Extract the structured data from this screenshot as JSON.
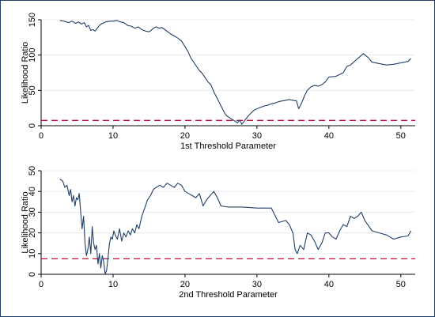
{
  "chart_data": [
    {
      "type": "line",
      "xlabel": "1st Threshold Parameter",
      "ylabel": "Likelihood Ratio",
      "xlim": [
        0,
        52
      ],
      "ylim": [
        0,
        150
      ],
      "xticks": [
        0,
        10,
        20,
        30,
        40,
        50
      ],
      "yticks": [
        0,
        50,
        100,
        150
      ],
      "grid": true,
      "colors": {
        "line": "#1f3f66",
        "reference": "#c0103f"
      },
      "reference_line": {
        "y": 7.5,
        "style": "dashed"
      },
      "series": [
        {
          "x": [
            2.6,
            3.2,
            3.8,
            4.3,
            4.8,
            5.2,
            5.6,
            6.0,
            6.3,
            6.6,
            6.9,
            7.2,
            7.5,
            7.8,
            8.1,
            8.5,
            9.0,
            9.5,
            10.0,
            10.5,
            11.0,
            11.5,
            12.0,
            12.5,
            13.0,
            13.5,
            14.0,
            14.5,
            15.0,
            15.3,
            15.6,
            16.0,
            16.4,
            16.8,
            17.2,
            17.6,
            18.0,
            18.5,
            19.0,
            19.5,
            20.0,
            20.4,
            20.8,
            21.2,
            21.6,
            22.0,
            22.4,
            22.8,
            23.2,
            23.6,
            24.0,
            24.3,
            24.6,
            24.9,
            25.2,
            25.5,
            25.8,
            26.1,
            26.4,
            26.7,
            27.0,
            27.3,
            27.6,
            27.9,
            28.2,
            28.5,
            28.8,
            29.2,
            29.6,
            30.0,
            30.5,
            31.0,
            31.5,
            32.0,
            32.5,
            33.0,
            33.5,
            34.0,
            34.5,
            35.0,
            35.5,
            35.8,
            36.2,
            36.6,
            37.0,
            37.5,
            38.0,
            38.5,
            39.0,
            39.5,
            40.0,
            41.0,
            42.0,
            42.5,
            43.0,
            44.0,
            44.8,
            45.5,
            46.0,
            47.0,
            48.0,
            49.0,
            50.0,
            51.0,
            51.4
          ],
          "y": [
            149,
            148,
            146,
            148,
            145,
            147,
            144,
            146,
            140,
            142,
            135,
            136,
            134,
            138,
            142,
            145,
            147,
            148,
            148,
            149,
            147,
            146,
            142,
            141,
            138,
            140,
            136,
            134,
            133,
            135,
            138,
            140,
            138,
            139,
            136,
            133,
            130,
            127,
            124,
            120,
            112,
            105,
            96,
            90,
            84,
            78,
            74,
            68,
            62,
            58,
            48,
            42,
            36,
            30,
            24,
            18,
            14,
            12,
            10,
            8,
            6,
            4,
            8,
            2,
            6,
            10,
            14,
            18,
            22,
            24,
            26,
            28,
            29,
            31,
            32,
            34,
            35,
            36,
            37,
            36,
            35,
            24,
            32,
            42,
            50,
            55,
            57,
            56,
            58,
            62,
            69,
            70,
            75,
            84,
            86,
            95,
            102,
            96,
            90,
            88,
            86,
            87,
            89,
            91,
            95
          ]
        }
      ]
    },
    {
      "type": "line",
      "xlabel": "2nd Threshold Parameter",
      "ylabel": "Likelihood Ratio",
      "xlim": [
        0,
        52
      ],
      "ylim": [
        0,
        50
      ],
      "xticks": [
        0,
        10,
        20,
        30,
        40,
        50
      ],
      "yticks": [
        0,
        10,
        20,
        30,
        40,
        50
      ],
      "grid": true,
      "colors": {
        "line": "#1f3f66",
        "reference": "#c0103f"
      },
      "reference_line": {
        "y": 7.5,
        "style": "dashed"
      },
      "series": [
        {
          "x": [
            2.6,
            3.0,
            3.3,
            3.6,
            3.9,
            4.1,
            4.3,
            4.5,
            4.7,
            4.9,
            5.1,
            5.3,
            5.5,
            5.7,
            5.9,
            6.1,
            6.3,
            6.5,
            6.7,
            6.9,
            7.1,
            7.3,
            7.5,
            7.7,
            7.9,
            8.1,
            8.3,
            8.5,
            8.7,
            8.9,
            9.1,
            9.3,
            9.5,
            9.7,
            9.9,
            10.1,
            10.3,
            10.6,
            10.9,
            11.2,
            11.5,
            11.8,
            12.1,
            12.4,
            12.7,
            13.0,
            13.3,
            13.6,
            14.0,
            14.4,
            14.8,
            15.2,
            15.6,
            16.0,
            16.5,
            17.0,
            17.5,
            18.0,
            18.5,
            19.0,
            19.5,
            20.0,
            20.5,
            21.0,
            21.5,
            22.0,
            22.5,
            23.0,
            23.5,
            24.0,
            24.5,
            25.0,
            26.0,
            28.0,
            30.0,
            32.0,
            33.0,
            34.0,
            34.5,
            35.0,
            35.3,
            35.6,
            36.0,
            36.5,
            37.0,
            37.5,
            38.0,
            38.5,
            39.0,
            39.5,
            40.0,
            40.5,
            41.0,
            41.5,
            42.0,
            42.5,
            43.0,
            43.5,
            44.0,
            44.5,
            45.0,
            46.0,
            47.0,
            48.0,
            49.0,
            50.0,
            51.0,
            51.4
          ],
          "y": [
            46,
            45,
            42,
            43,
            38,
            41,
            35,
            38,
            33,
            37,
            36,
            39,
            30,
            22,
            28,
            15,
            9,
            12,
            18,
            10,
            23,
            15,
            12,
            14,
            5,
            10,
            3,
            9,
            6,
            0,
            2,
            8,
            15,
            18,
            17,
            21,
            19,
            17,
            22,
            16,
            20,
            18,
            21,
            19,
            22,
            20,
            24,
            22,
            28,
            32,
            36,
            38,
            41,
            42,
            43,
            42,
            44,
            43,
            42,
            44,
            43,
            40,
            39,
            38,
            37,
            39,
            33,
            36,
            38,
            40,
            37,
            33,
            32.5,
            32.5,
            32,
            32,
            25,
            26,
            24,
            20,
            12,
            10,
            14,
            12,
            20,
            19,
            16,
            12,
            15,
            20,
            20,
            18,
            17,
            21,
            24,
            23,
            28,
            27,
            28,
            30,
            26,
            21,
            20,
            19,
            17,
            18,
            18.5,
            21
          ]
        }
      ]
    }
  ]
}
